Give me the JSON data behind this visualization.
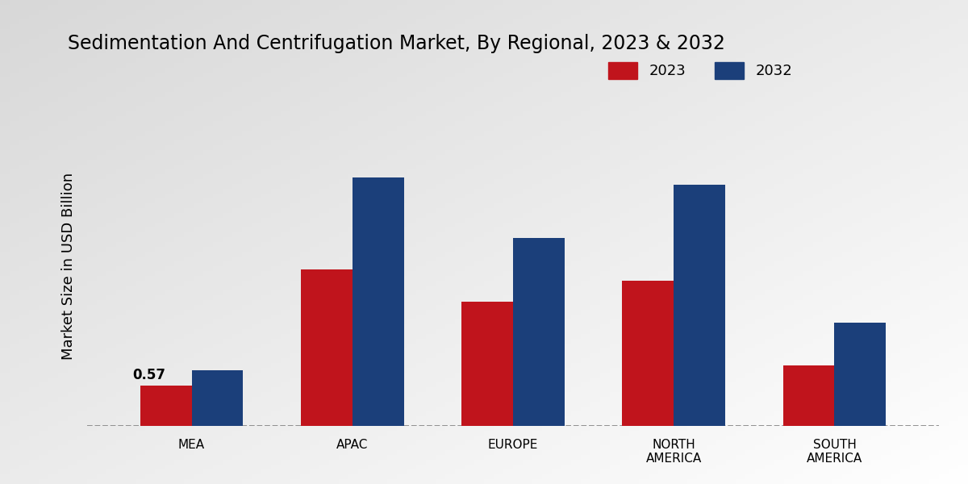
{
  "title": "Sedimentation And Centrifugation Market, By Regional, 2023 & 2032",
  "ylabel": "Market Size in USD Billion",
  "categories": [
    "MEA",
    "APAC",
    "EUROPE",
    "NORTH\nAMERICA",
    "SOUTH\nAMERICA"
  ],
  "values_2023": [
    0.57,
    2.2,
    1.75,
    2.05,
    0.85
  ],
  "values_2032": [
    0.78,
    3.5,
    2.65,
    3.4,
    1.45
  ],
  "color_2023": "#c0141c",
  "color_2032": "#1b3f7a",
  "annotation_mea": "0.57",
  "legend_labels": [
    "2023",
    "2032"
  ],
  "bg_top_left": "#d8d8d8",
  "bg_bottom_right": "#f5f5f5",
  "bar_width": 0.32,
  "ylim": [
    0,
    4.5
  ],
  "title_fontsize": 17,
  "axis_label_fontsize": 13,
  "tick_fontsize": 11,
  "legend_fontsize": 13
}
